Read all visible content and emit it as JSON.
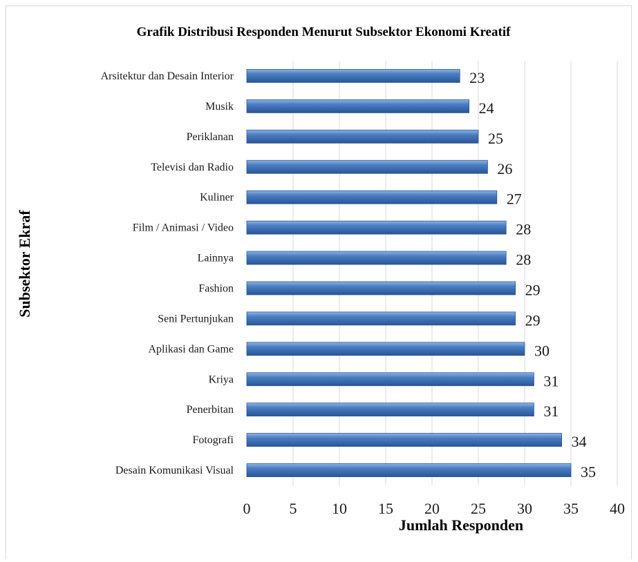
{
  "chart_data": {
    "type": "bar",
    "orientation": "horizontal",
    "title": "Grafik Distribusi Responden Menurut Subsektor Ekonomi Kreatif",
    "xlabel": "Jumlah Responden",
    "ylabel": "Subsektor Ekraf",
    "categories": [
      "Arsitektur dan Desain Interior",
      "Musik",
      "Periklanan",
      "Televisi dan Radio",
      "Kuliner",
      "Film / Animasi / Video",
      "Lainnya",
      "Fashion",
      "Seni Pertunjukan",
      "Aplikasi dan Game",
      "Kriya",
      "Penerbitan",
      "Fotografi",
      "Desain Komunikasi Visual"
    ],
    "values": [
      23,
      24,
      25,
      26,
      27,
      28,
      28,
      29,
      29,
      30,
      31,
      31,
      34,
      35
    ],
    "xlim": [
      0,
      40
    ],
    "xticks": [
      0,
      5,
      10,
      15,
      20,
      25,
      30,
      35,
      40
    ],
    "grid": true,
    "data_labels": true,
    "bar_color": "#4a7ec2",
    "bar_color_light": "#8fb4e3",
    "bar_color_dark": "#2a5596",
    "gridline_color": "#d9d9d9",
    "legend": "none"
  }
}
